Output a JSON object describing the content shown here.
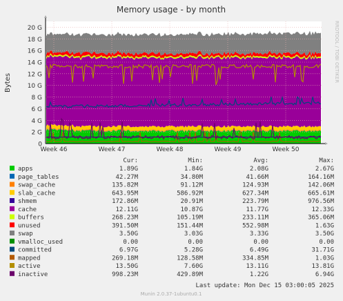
{
  "chart_data": {
    "type": "area",
    "title": "Memory usage - by month",
    "ylabel": "Bytes",
    "side_label": "RRDTOOL / TOBI OETIKER",
    "ylim": [
      0,
      21000000000
    ],
    "yticks": [
      {
        "label": "0",
        "value": 0
      },
      {
        "label": "2 G",
        "value": 2000000000
      },
      {
        "label": "4 G",
        "value": 4000000000
      },
      {
        "label": "6 G",
        "value": 6000000000
      },
      {
        "label": "8 G",
        "value": 8000000000
      },
      {
        "label": "10 G",
        "value": 10000000000
      },
      {
        "label": "12 G",
        "value": 12000000000
      },
      {
        "label": "14 G",
        "value": 14000000000
      },
      {
        "label": "16 G",
        "value": 16000000000
      },
      {
        "label": "18 G",
        "value": 18000000000
      },
      {
        "label": "20 G",
        "value": 20000000000
      }
    ],
    "xticks": [
      "Week 46",
      "Week 47",
      "Week 48",
      "Week 49",
      "Week 50"
    ],
    "grid": true,
    "colors": {
      "apps": "#00cc00",
      "page_tables": "#0066b3",
      "swap_cache": "#ff8000",
      "slab_cache": "#ffcc00",
      "shmem": "#330099",
      "cache": "#990099",
      "buffers": "#ccff00",
      "unused": "#ff0000",
      "swap": "#808080",
      "vmalloc_used": "#008f00",
      "committed": "#00487d",
      "mapped": "#b35a00",
      "active": "#b38f00",
      "inactive": "#6b006b"
    },
    "legend": {
      "headers": [
        "Cur:",
        "Min:",
        "Avg:",
        "Max:"
      ],
      "rows": [
        {
          "name": "apps",
          "cur": "1.89G",
          "min": "1.84G",
          "avg": "2.08G",
          "max": "2.67G"
        },
        {
          "name": "page_tables",
          "cur": "42.27M",
          "min": "34.80M",
          "avg": "41.66M",
          "max": "164.16M"
        },
        {
          "name": "swap_cache",
          "cur": "135.82M",
          "min": "91.12M",
          "avg": "124.93M",
          "max": "142.06M"
        },
        {
          "name": "slab_cache",
          "cur": "643.95M",
          "min": "586.92M",
          "avg": "627.34M",
          "max": "665.61M"
        },
        {
          "name": "shmem",
          "cur": "172.86M",
          "min": "20.91M",
          "avg": "223.79M",
          "max": "976.56M"
        },
        {
          "name": "cache",
          "cur": "12.11G",
          "min": "10.87G",
          "avg": "11.77G",
          "max": "12.33G"
        },
        {
          "name": "buffers",
          "cur": "268.23M",
          "min": "105.19M",
          "avg": "233.11M",
          "max": "365.06M"
        },
        {
          "name": "unused",
          "cur": "391.50M",
          "min": "151.44M",
          "avg": "552.98M",
          "max": "1.63G"
        },
        {
          "name": "swap",
          "cur": "3.50G",
          "min": "3.03G",
          "avg": "3.33G",
          "max": "3.50G"
        },
        {
          "name": "vmalloc_used",
          "cur": "0.00",
          "min": "0.00",
          "avg": "0.00",
          "max": "0.00"
        },
        {
          "name": "committed",
          "cur": "6.97G",
          "min": "5.28G",
          "avg": "6.49G",
          "max": "31.71G"
        },
        {
          "name": "mapped",
          "cur": "269.18M",
          "min": "128.58M",
          "avg": "334.85M",
          "max": "1.03G"
        },
        {
          "name": "active",
          "cur": "13.50G",
          "min": "7.60G",
          "avg": "13.11G",
          "max": "13.81G"
        },
        {
          "name": "inactive",
          "cur": "998.23M",
          "min": "429.89M",
          "avg": "1.22G",
          "max": "6.94G"
        }
      ]
    },
    "last_update": "Last update: Mon Dec 15 03:00:05 2025",
    "footer": "Munin 2.0.37-1ubuntu0.1"
  }
}
